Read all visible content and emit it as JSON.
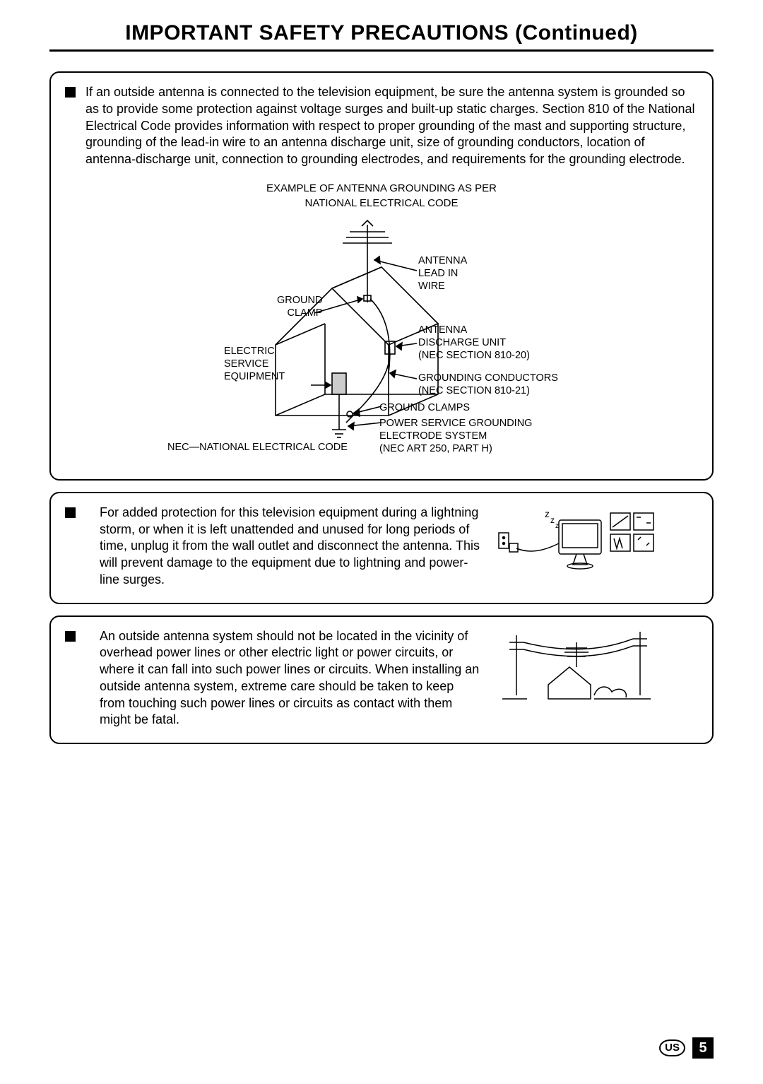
{
  "title": "IMPORTANT SAFETY PRECAUTIONS (Continued)",
  "box1": {
    "text": "If an outside antenna is connected to the television equipment, be sure the antenna system is grounded so as to provide some protection against voltage surges and built-up static charges. Section 810 of the National Electrical Code provides information with respect to proper grounding of the mast and supporting structure, grounding of the lead-in wire to an antenna discharge unit, size of grounding conductors, location of antenna-discharge unit, connection to grounding electrodes, and requirements for the grounding electrode.",
    "caption_l1": "EXAMPLE OF ANTENNA GROUNDING AS PER",
    "caption_l2": "NATIONAL ELECTRICAL CODE",
    "labels": {
      "ground_clamp": "GROUND\nCLAMP",
      "electric_service": "ELECTRIC\nSERVICE\nEQUIPMENT",
      "nec_note": "NEC—NATIONAL ELECTRICAL CODE",
      "antenna_lead": "ANTENNA\nLEAD IN\nWIRE",
      "discharge_unit": "ANTENNA\nDISCHARGE UNIT\n(NEC SECTION 810-20)",
      "grounding_conductors": "GROUNDING CONDUCTORS\n(NEC SECTION 810-21)",
      "ground_clamps": "GROUND CLAMPS",
      "power_service": "POWER SERVICE GROUNDING\nELECTRODE SYSTEM\n(NEC ART 250, PART H)"
    }
  },
  "box2": {
    "text": "For added protection for this television equipment during a lightning storm, or when it is left unattended and unused for long periods of time, unplug it from the wall outlet and disconnect the antenna. This will prevent damage to the equipment due to lightning and power-line surges."
  },
  "box3": {
    "text": "An outside antenna system should not be located in the vicinity of overhead power lines or other electric light or power circuits, or where it can fall into such power lines or circuits. When installing an outside antenna system, extreme care should be taken to keep from touching such power lines or circuits as contact with them might be fatal."
  },
  "footer": {
    "region": "US",
    "page": "5"
  },
  "colors": {
    "text": "#000000",
    "bg": "#ffffff"
  }
}
